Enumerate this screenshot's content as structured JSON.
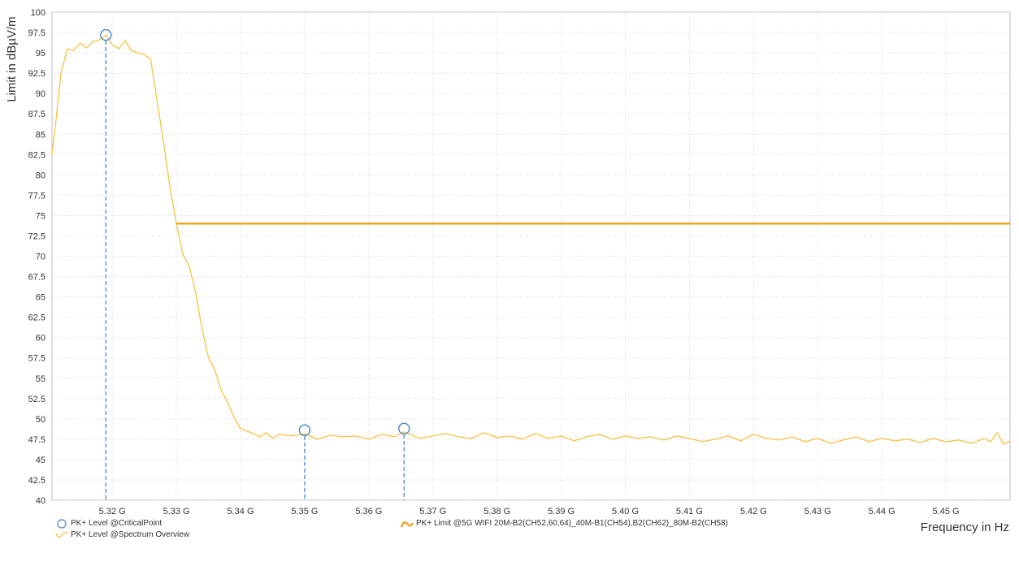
{
  "chart_data": {
    "type": "line",
    "xlabel": "Frequency in Hz",
    "ylabel": "Limit in dBµV/m",
    "xlim": [
      5.3106,
      5.46
    ],
    "ylim": [
      40,
      100
    ],
    "y_ticks": [
      "100",
      "97.5",
      "95",
      "92.5",
      "90",
      "87.5",
      "85",
      "82.5",
      "80",
      "77.5",
      "75",
      "72.5",
      "70",
      "67.5",
      "65",
      "62.5",
      "60",
      "57.5",
      "55",
      "52.5",
      "50",
      "47.5",
      "45",
      "42.5",
      "40"
    ],
    "x_ticks": [
      "5.32 G",
      "5.33 G",
      "5.34 G",
      "5.35 G",
      "5.36 G",
      "5.37 G",
      "5.38 G",
      "5.39 G",
      "5.40 G",
      "5.41 G",
      "5.42 G",
      "5.43 G",
      "5.44 G",
      "5.45 G"
    ],
    "grid": true,
    "legend_position": "bottom",
    "colors": {
      "spectrum": "#f5c242",
      "limit": "#f0a010",
      "critical": "#4a86c8",
      "grid": "#d8d8d8"
    },
    "series": [
      {
        "name": "PK+ Level @Spectrum Overview",
        "kind": "line",
        "x": [
          5.3106,
          5.3112,
          5.312,
          5.313,
          5.314,
          5.315,
          5.316,
          5.317,
          5.318,
          5.319,
          5.32,
          5.321,
          5.322,
          5.323,
          5.324,
          5.325,
          5.326,
          5.327,
          5.328,
          5.329,
          5.33,
          5.331,
          5.332,
          5.333,
          5.334,
          5.335,
          5.336,
          5.337,
          5.338,
          5.339,
          5.34,
          5.341,
          5.342,
          5.343,
          5.344,
          5.345,
          5.346,
          5.348,
          5.35,
          5.352,
          5.354,
          5.356,
          5.358,
          5.36,
          5.362,
          5.364,
          5.3655,
          5.368,
          5.37,
          5.372,
          5.374,
          5.376,
          5.378,
          5.38,
          5.382,
          5.384,
          5.386,
          5.388,
          5.39,
          5.392,
          5.394,
          5.396,
          5.398,
          5.4,
          5.402,
          5.404,
          5.406,
          5.408,
          5.41,
          5.412,
          5.414,
          5.416,
          5.418,
          5.42,
          5.422,
          5.424,
          5.426,
          5.428,
          5.43,
          5.432,
          5.434,
          5.436,
          5.438,
          5.44,
          5.442,
          5.444,
          5.446,
          5.448,
          5.45,
          5.452,
          5.454,
          5.456,
          5.457,
          5.458,
          5.459,
          5.46
        ],
        "y": [
          82.5,
          86.5,
          92.5,
          95.5,
          95.3,
          96.2,
          95.6,
          96.4,
          96.6,
          97.2,
          96.0,
          95.5,
          96.5,
          95.3,
          95.0,
          94.8,
          94.2,
          89.0,
          84.0,
          78.5,
          74.0,
          70.2,
          68.8,
          65.5,
          61.0,
          57.5,
          56.0,
          53.5,
          52.0,
          50.2,
          48.8,
          48.5,
          48.2,
          47.8,
          48.3,
          47.6,
          48.1,
          47.9,
          48.2,
          47.5,
          48.0,
          47.8,
          47.9,
          47.5,
          48.1,
          47.8,
          48.4,
          47.6,
          47.9,
          48.2,
          47.8,
          47.6,
          48.3,
          47.7,
          47.9,
          47.5,
          48.2,
          47.6,
          47.9,
          47.3,
          47.8,
          48.1,
          47.5,
          47.9,
          47.6,
          47.8,
          47.4,
          47.9,
          47.6,
          47.2,
          47.5,
          47.9,
          47.3,
          48.1,
          47.6,
          47.4,
          47.8,
          47.2,
          47.6,
          47.0,
          47.4,
          47.8,
          47.2,
          47.6,
          47.3,
          47.5,
          47.1,
          47.6,
          47.2,
          47.4,
          47.0,
          47.6,
          47.2,
          48.3,
          46.9,
          47.3
        ]
      },
      {
        "name": "PK+ Limit @5G WIFI 20M-B2(CH52,60,64)_40M-B1(CH54),B2(CH62)_80M-B2(CH58)",
        "kind": "line",
        "x": [
          5.33,
          5.46
        ],
        "y": [
          74,
          74
        ]
      },
      {
        "name": "PK+ Level @CriticalPoint",
        "kind": "scatter",
        "x": [
          5.319,
          5.35,
          5.3655
        ],
        "y": [
          97.2,
          48.6,
          48.8
        ]
      }
    ]
  }
}
